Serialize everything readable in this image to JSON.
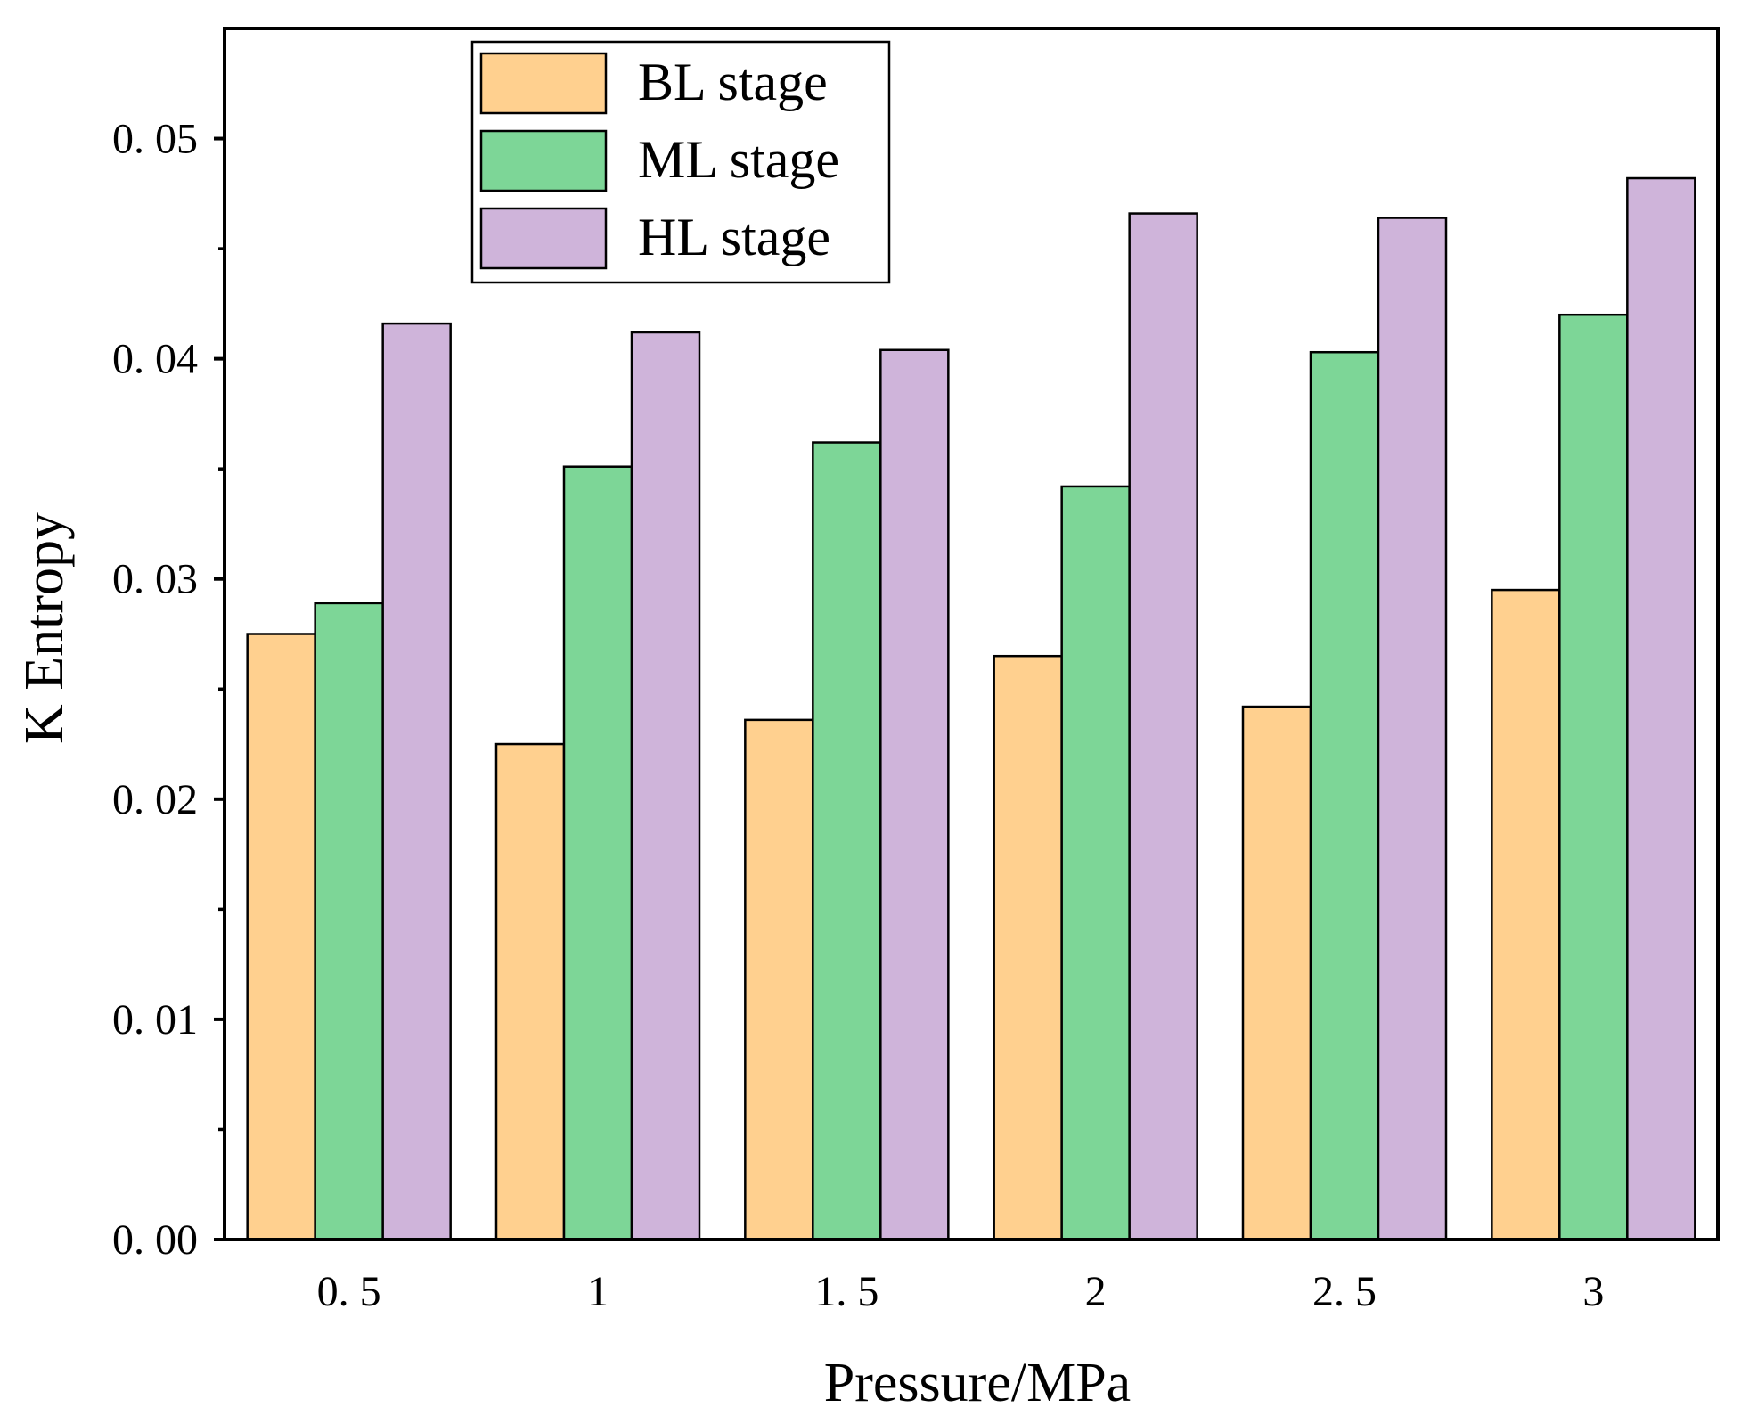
{
  "chart_data": {
    "type": "bar",
    "title": "",
    "xlabel": "Pressure/MPa",
    "ylabel": "K Entropy",
    "categories": [
      "0.5",
      "1",
      "1.5",
      "2",
      "2.5",
      "3"
    ],
    "category_labels": [
      "0. 5",
      "1",
      "1. 5",
      "2",
      "2. 5",
      "3"
    ],
    "ylim": [
      0,
      0.055
    ],
    "yticks": [
      0,
      0.01,
      0.02,
      0.03,
      0.04,
      0.05
    ],
    "ytick_labels": [
      "0. 00",
      "0. 01",
      "0. 02",
      "0. 03",
      "0. 04",
      "0. 05"
    ],
    "minor_yticks": [
      0.005,
      0.015,
      0.025,
      0.035,
      0.045
    ],
    "grid": false,
    "legend_position": "top-left",
    "series": [
      {
        "name": "BL stage",
        "color": "#FFD08F",
        "values": [
          0.0275,
          0.0225,
          0.0236,
          0.0265,
          0.0242,
          0.0295
        ]
      },
      {
        "name": "ML stage",
        "color": "#7DD697",
        "values": [
          0.0289,
          0.0351,
          0.0362,
          0.0342,
          0.0403,
          0.042
        ]
      },
      {
        "name": "HL stage",
        "color": "#CFB4DA",
        "values": [
          0.0416,
          0.0412,
          0.0404,
          0.0466,
          0.0464,
          0.0482
        ]
      }
    ]
  }
}
